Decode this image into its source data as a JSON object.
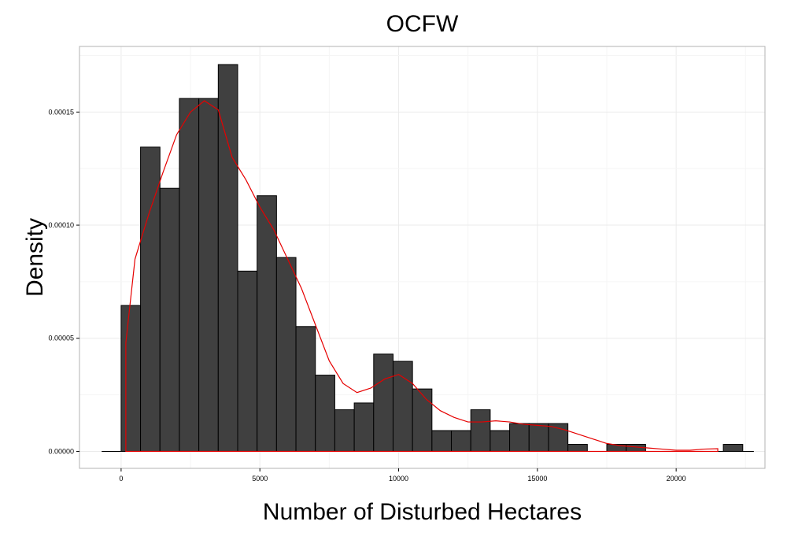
{
  "chart_data": {
    "type": "bar",
    "title": "OCFW",
    "xlabel": "Number of Disturbed Hectares",
    "ylabel": "Density",
    "xlim": [
      -1500,
      23200
    ],
    "ylim": [
      -7.5e-06,
      0.000179
    ],
    "x_ticks": [
      0,
      5000,
      10000,
      15000,
      20000
    ],
    "x_tick_labels": [
      "0",
      "5000",
      "10000",
      "15000",
      "20000"
    ],
    "y_ticks": [
      0,
      5e-05,
      0.0001,
      0.00015
    ],
    "y_tick_labels": [
      "0.00000",
      "0.00005",
      "0.00010",
      "0.00015"
    ],
    "grid": true,
    "bar_color": "#404040",
    "bar_edge_color": "#000000",
    "density_color": "#e60000",
    "histogram": {
      "bin_start": 0,
      "bin_width": 700,
      "density": [
        6.45e-05,
        0.0001345,
        0.0001163,
        0.000156,
        0.000156,
        0.000171,
        7.97e-05,
        0.000113,
        8.57e-05,
        5.52e-05,
        3.37e-05,
        1.84e-05,
        2.14e-05,
        4.3e-05,
        3.98e-05,
        2.76e-05,
        9.2e-06,
        9.2e-06,
        1.84e-05,
        9.2e-06,
        1.23e-05,
        1.23e-05,
        1.23e-05,
        3.1e-06,
        0,
        3.1e-06,
        3.1e-06,
        0,
        0,
        0,
        0,
        3.1e-06
      ]
    },
    "density_curve": {
      "x": [
        170,
        500,
        1000,
        1500,
        2000,
        2500,
        3000,
        3500,
        4000,
        4500,
        5000,
        5500,
        6000,
        6500,
        7000,
        7500,
        8000,
        8500,
        9000,
        9500,
        10000,
        10500,
        11000,
        11500,
        12000,
        12500,
        13000,
        13500,
        14000,
        14500,
        15000,
        15500,
        16000,
        16500,
        17000,
        17500,
        18000,
        18500,
        19000,
        19500,
        20000,
        20500,
        21000,
        21500
      ],
      "y": [
        4.8e-05,
        8.5e-05,
        0.000105,
        0.000123,
        0.00014,
        0.00015,
        0.000155,
        0.000151,
        0.00013,
        0.00012,
        0.000108,
        9.8e-05,
        8.5e-05,
        7.2e-05,
        5.6e-05,
        4e-05,
        3e-05,
        2.6e-05,
        2.8e-05,
        3.2e-05,
        3.4e-05,
        3e-05,
        2.3e-05,
        1.8e-05,
        1.5e-05,
        1.3e-05,
        1.3e-05,
        1.35e-05,
        1.3e-05,
        1.2e-05,
        1.15e-05,
        1.1e-05,
        9.5e-06,
        7.5e-06,
        5.5e-06,
        3.5e-06,
        2.5e-06,
        2e-06,
        1.5e-06,
        1e-06,
        5e-07,
        5e-07,
        1e-06,
        1.2e-06
      ]
    }
  }
}
